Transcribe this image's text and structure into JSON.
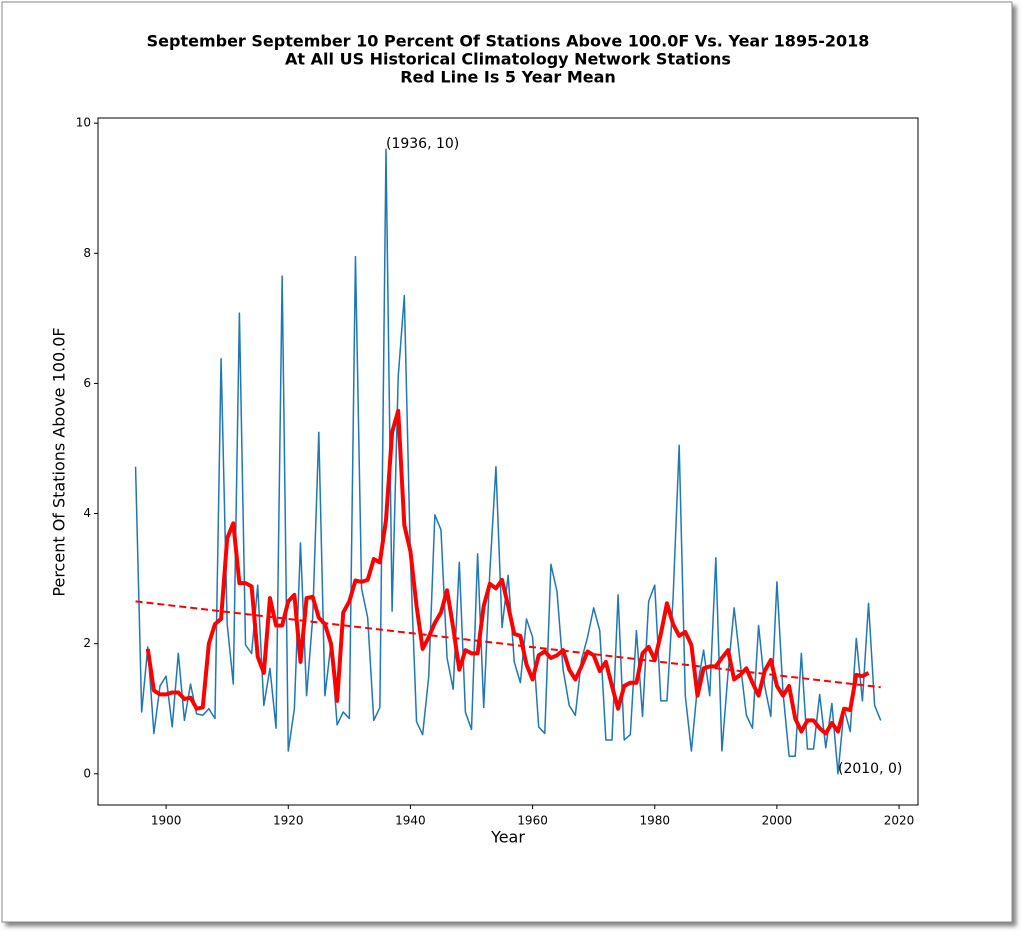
{
  "chart_data": {
    "type": "line",
    "title": [
      "September September 10 Percent Of Stations Above 100.0F Vs. Year 1895-2018",
      "At All US Historical Climatology Network Stations",
      "Red Line Is 5 Year Mean"
    ],
    "xlabel": "Year",
    "ylabel": "Percent Of Stations Above 100.0F",
    "xlim": [
      1888.85,
      2023.1
    ],
    "ylim": [
      -0.48,
      10.08
    ],
    "xticks": [
      1900,
      1920,
      1940,
      1960,
      1980,
      2000,
      2020
    ],
    "yticks": [
      0,
      2,
      4,
      6,
      8,
      10
    ],
    "x": [
      1895,
      1896,
      1897,
      1898,
      1899,
      1900,
      1901,
      1902,
      1903,
      1904,
      1905,
      1906,
      1907,
      1908,
      1909,
      1910,
      1911,
      1912,
      1913,
      1914,
      1915,
      1916,
      1917,
      1918,
      1919,
      1920,
      1921,
      1922,
      1923,
      1924,
      1925,
      1926,
      1927,
      1928,
      1929,
      1930,
      1931,
      1932,
      1933,
      1934,
      1935,
      1936,
      1937,
      1938,
      1939,
      1940,
      1941,
      1942,
      1943,
      1944,
      1945,
      1946,
      1947,
      1948,
      1949,
      1950,
      1951,
      1952,
      1953,
      1954,
      1955,
      1956,
      1957,
      1958,
      1959,
      1960,
      1961,
      1962,
      1963,
      1964,
      1965,
      1966,
      1967,
      1968,
      1969,
      1970,
      1971,
      1972,
      1973,
      1974,
      1975,
      1976,
      1977,
      1978,
      1979,
      1980,
      1981,
      1982,
      1983,
      1984,
      1985,
      1986,
      1987,
      1988,
      1989,
      1990,
      1991,
      1992,
      1993,
      1994,
      1995,
      1996,
      1997,
      1998,
      1999,
      2000,
      2001,
      2002,
      2003,
      2004,
      2005,
      2006,
      2007,
      2008,
      2009,
      2010,
      2011,
      2012,
      2013,
      2014,
      2015,
      2016,
      2017
    ],
    "series": [
      {
        "color": "#1f77b4",
        "width": 1.5,
        "values": [
          4.72,
          0.95,
          1.95,
          0.62,
          1.35,
          1.5,
          0.72,
          1.85,
          0.82,
          1.38,
          0.92,
          0.9,
          1.0,
          0.85,
          6.38,
          2.3,
          1.38,
          7.08,
          1.98,
          1.85,
          2.9,
          1.05,
          1.62,
          0.7,
          7.65,
          0.35,
          1.0,
          3.55,
          1.2,
          2.4,
          5.25,
          1.2,
          2.0,
          0.75,
          0.95,
          0.85,
          7.95,
          2.85,
          2.4,
          0.82,
          1.02,
          9.6,
          2.5,
          6.1,
          7.35,
          3.3,
          0.8,
          0.6,
          1.5,
          3.98,
          3.75,
          1.78,
          1.3,
          3.25,
          0.95,
          0.68,
          3.38,
          1.02,
          3.1,
          4.72,
          2.25,
          3.05,
          1.72,
          1.4,
          2.38,
          2.1,
          0.72,
          0.62,
          3.22,
          2.8,
          1.6,
          1.05,
          0.9,
          1.75,
          2.1,
          2.55,
          2.2,
          0.52,
          0.52,
          2.75,
          0.52,
          0.6,
          2.2,
          0.88,
          2.65,
          2.9,
          1.12,
          1.12,
          2.7,
          5.05,
          1.2,
          0.35,
          1.35,
          1.9,
          1.2,
          3.32,
          0.35,
          1.55,
          2.55,
          1.7,
          0.9,
          0.7,
          2.28,
          1.35,
          0.88,
          2.95,
          1.25,
          0.27,
          0.27,
          1.85,
          0.38,
          0.38,
          1.22,
          0.4,
          1.08,
          0.0,
          1.0,
          0.65,
          2.08,
          1.12,
          2.62,
          1.05,
          0.82
        ]
      },
      {
        "color": "#ff0000",
        "width": 4,
        "values": [
          null,
          null,
          1.92,
          1.28,
          1.22,
          1.22,
          1.25,
          1.25,
          1.15,
          1.17,
          1.0,
          1.02,
          2.0,
          2.3,
          2.38,
          3.62,
          3.85,
          2.93,
          2.93,
          2.88,
          1.8,
          1.55,
          2.7,
          2.28,
          2.28,
          2.65,
          2.75,
          1.72,
          2.7,
          2.72,
          2.4,
          2.3,
          2.0,
          1.12,
          2.48,
          2.65,
          2.97,
          2.95,
          2.98,
          3.3,
          3.25,
          3.9,
          5.25,
          5.58,
          3.82,
          3.42,
          2.58,
          1.92,
          2.1,
          2.32,
          2.48,
          2.82,
          2.25,
          1.6,
          1.9,
          1.85,
          1.85,
          2.58,
          2.92,
          2.85,
          2.98,
          2.58,
          2.15,
          2.12,
          1.68,
          1.45,
          1.82,
          1.88,
          1.78,
          1.82,
          1.9,
          1.6,
          1.45,
          1.65,
          1.88,
          1.82,
          1.58,
          1.72,
          1.35,
          1.0,
          1.35,
          1.4,
          1.4,
          1.85,
          1.95,
          1.75,
          2.15,
          2.62,
          2.3,
          2.12,
          2.18,
          1.98,
          1.2,
          1.62,
          1.65,
          1.65,
          1.78,
          1.9,
          1.45,
          1.52,
          1.62,
          1.4,
          1.2,
          1.58,
          1.75,
          1.35,
          1.2,
          1.35,
          0.85,
          0.65,
          0.82,
          0.82,
          0.7,
          0.62,
          0.78,
          0.65,
          1.0,
          0.98,
          1.52,
          1.5,
          1.55,
          null,
          null
        ]
      }
    ],
    "trend": {
      "x": [
        1895,
        2017
      ],
      "values": [
        2.65,
        1.33
      ],
      "color": "#ff0000",
      "dashed": true
    },
    "annotations": [
      {
        "text": "(1936, 10)",
        "x": 1936,
        "y": 9.6
      },
      {
        "text": "(2010, 0)",
        "x": 2010,
        "y": 0
      }
    ]
  }
}
